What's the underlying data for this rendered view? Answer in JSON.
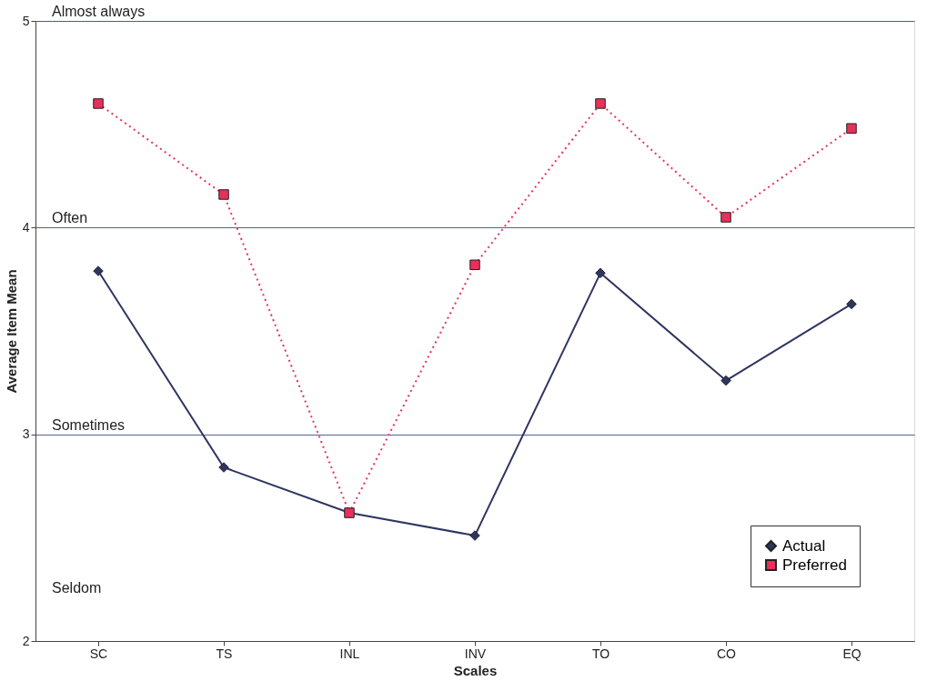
{
  "chart_data": {
    "type": "line",
    "xlabel": "Scales",
    "ylabel": "Average Item Mean",
    "categories": [
      "SC",
      "TS",
      "INL",
      "INV",
      "TO",
      "CO",
      "EQ"
    ],
    "series": [
      {
        "name": "Actual",
        "color": "#2e3560",
        "marker": "diamond",
        "line_style": "solid",
        "values": [
          3.79,
          2.84,
          2.62,
          2.51,
          3.78,
          3.26,
          3.63
        ]
      },
      {
        "name": "Preferred",
        "color": "#e8305a",
        "marker": "square",
        "line_style": "dotted",
        "values": [
          4.6,
          4.16,
          2.62,
          3.82,
          4.6,
          4.05,
          4.48
        ]
      }
    ],
    "ylim": [
      2,
      5
    ],
    "yticks": [
      2,
      3,
      4,
      5
    ],
    "grid": "y",
    "legend": "bottom right",
    "annotations": [
      "Almost always",
      "Often",
      "Sometimes",
      "Seldom"
    ]
  }
}
